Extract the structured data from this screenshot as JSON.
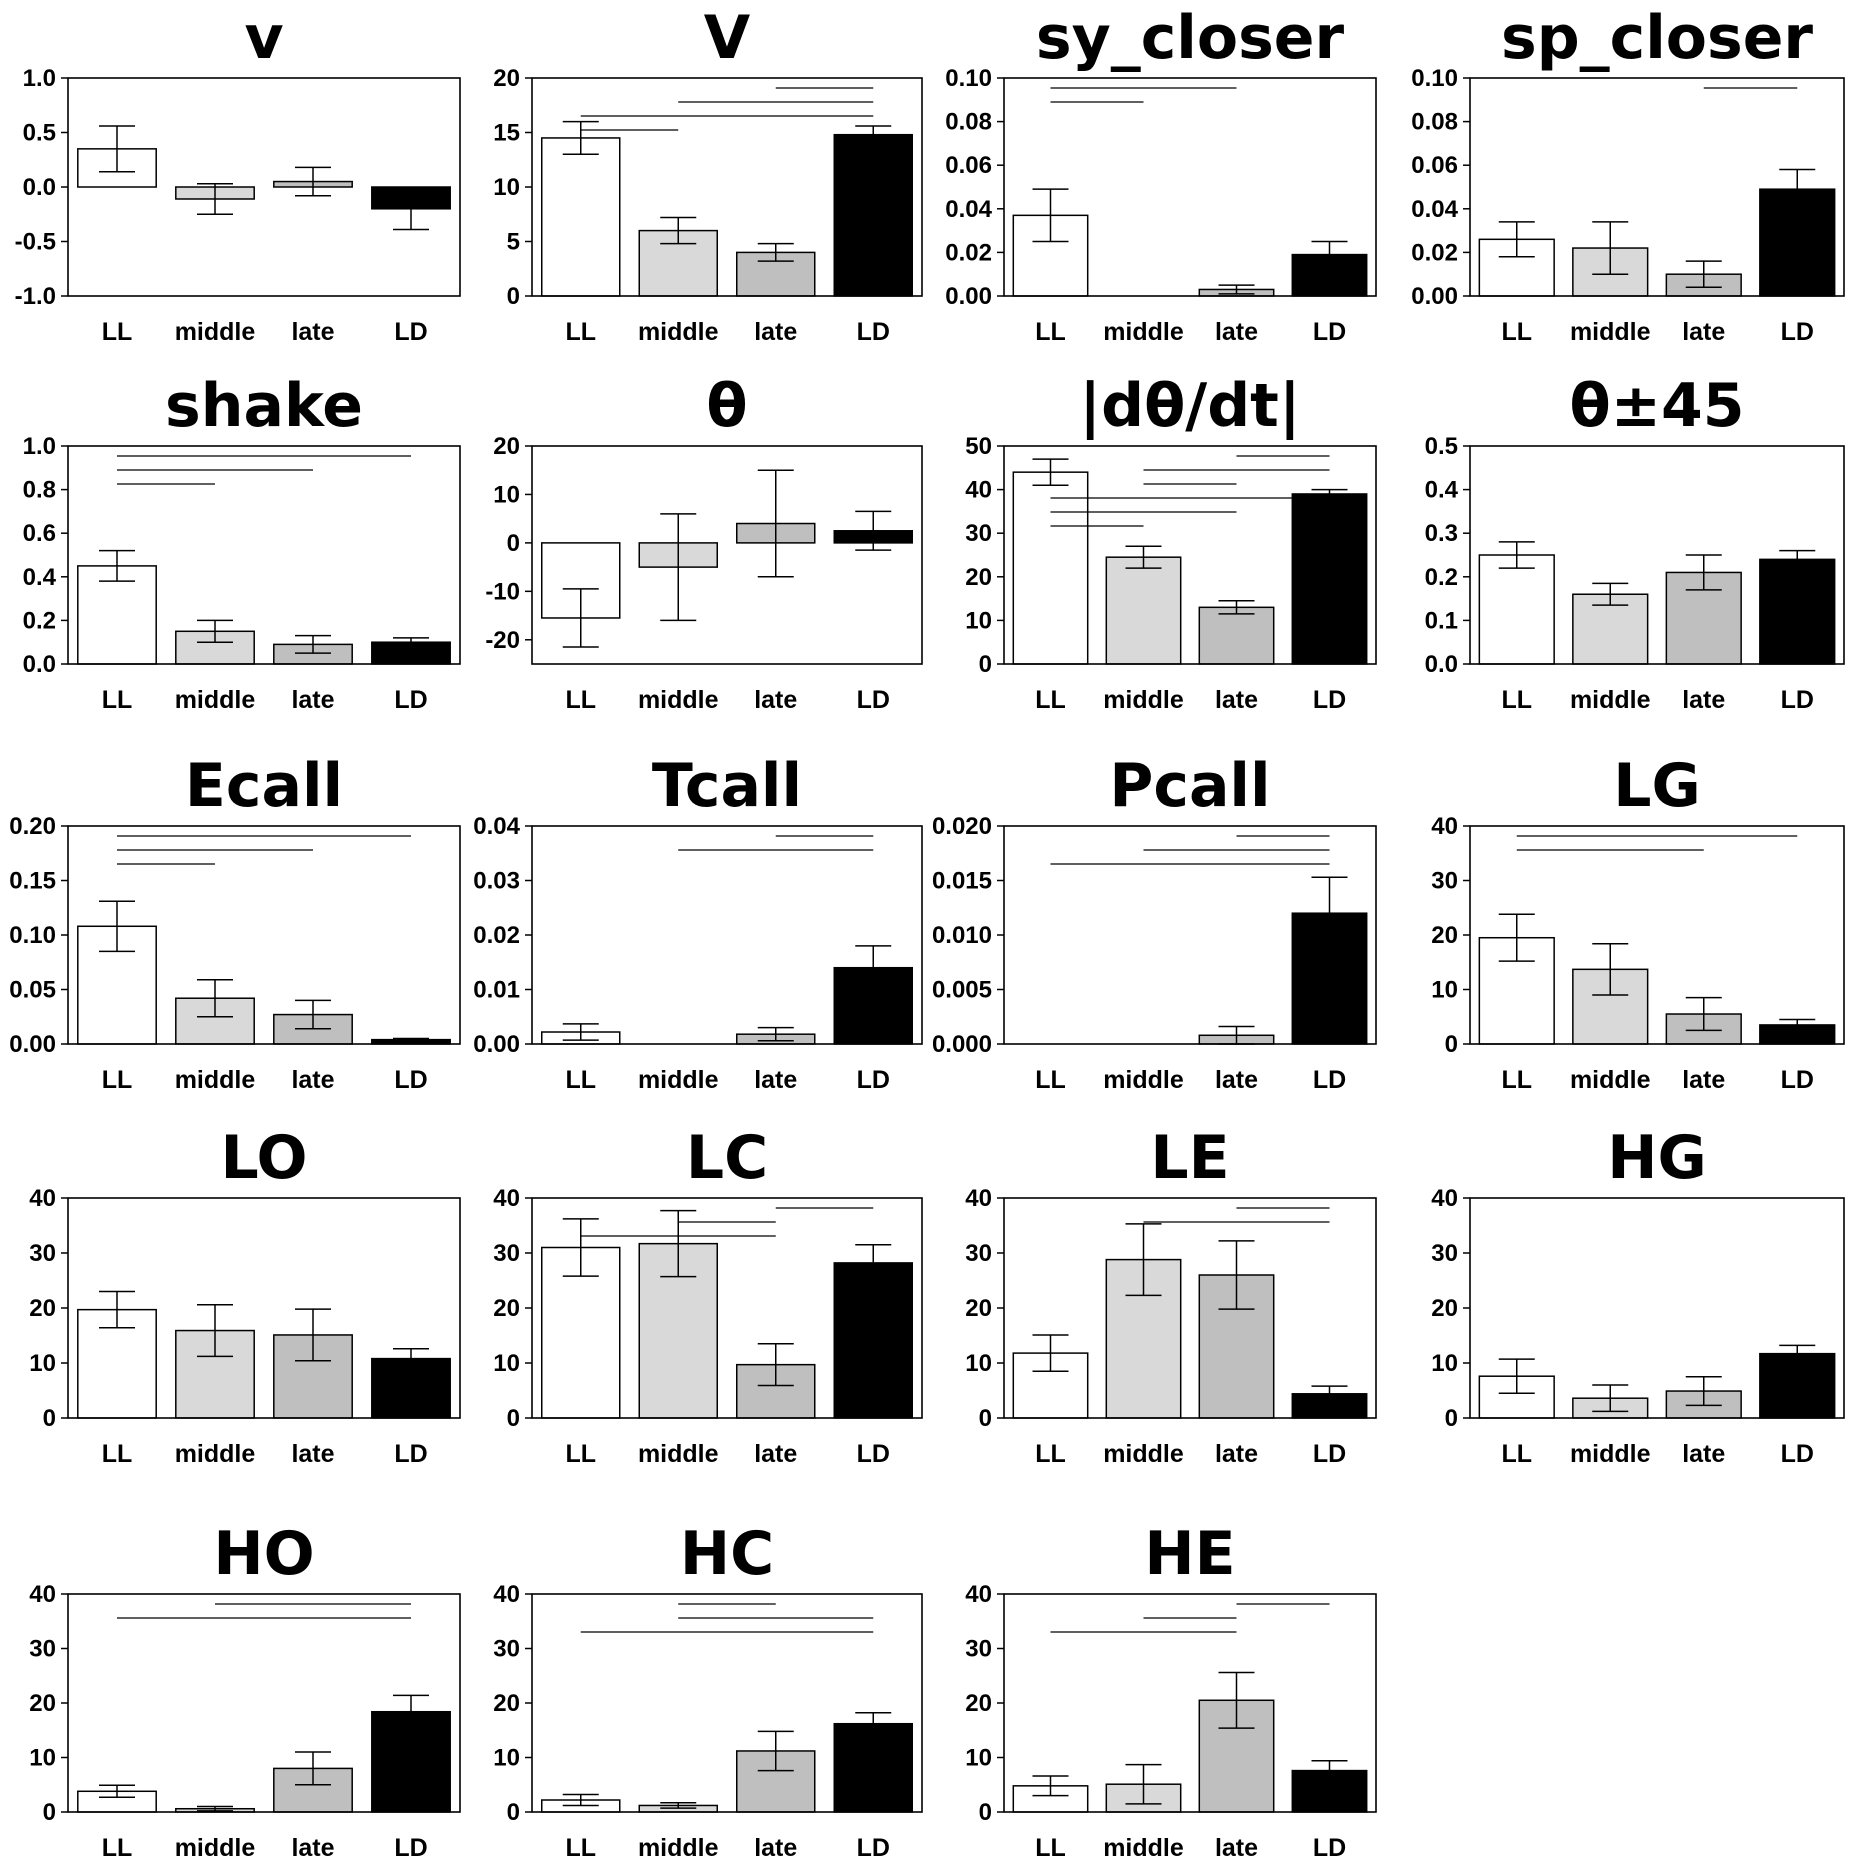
{
  "figure": {
    "categories": [
      "LL",
      "middle",
      "late",
      "LD"
    ],
    "bar_colors": [
      "#ffffff",
      "#d9d9d9",
      "#bfbfbf",
      "#000000"
    ]
  },
  "chart_data": [
    {
      "type": "bar",
      "title": "v",
      "categories": [
        "LL",
        "middle",
        "late",
        "LD"
      ],
      "values": [
        0.35,
        -0.11,
        0.05,
        -0.2
      ],
      "errors": [
        0.21,
        0.14,
        0.13,
        0.19
      ],
      "ylim": [
        -1.0,
        1.0
      ],
      "yticks": [
        "-1.0",
        "-0.5",
        "0.0",
        "0.5",
        "1.0"
      ],
      "significance": []
    },
    {
      "type": "bar",
      "title": "V",
      "categories": [
        "LL",
        "middle",
        "late",
        "LD"
      ],
      "values": [
        14.5,
        6.0,
        4.0,
        14.8
      ],
      "errors": [
        1.5,
        1.2,
        0.8,
        0.8
      ],
      "ylim": [
        0,
        20
      ],
      "yticks": [
        "0",
        "5",
        "10",
        "15",
        "20"
      ],
      "significance": [
        [
          0,
          1
        ],
        [
          0,
          3
        ],
        [
          1,
          3
        ],
        [
          2,
          3
        ]
      ]
    },
    {
      "type": "bar",
      "title": "sy_closer",
      "categories": [
        "LL",
        "middle",
        "late",
        "LD"
      ],
      "values": [
        0.037,
        0.0,
        0.003,
        0.019
      ],
      "errors": [
        0.012,
        0.0,
        0.002,
        0.006
      ],
      "ylim": [
        0,
        0.1
      ],
      "yticks": [
        "0.00",
        "0.02",
        "0.04",
        "0.06",
        "0.08",
        "0.10"
      ],
      "significance": [
        [
          0,
          1
        ],
        [
          0,
          2
        ]
      ]
    },
    {
      "type": "bar",
      "title": "sp_closer",
      "categories": [
        "LL",
        "middle",
        "late",
        "LD"
      ],
      "values": [
        0.026,
        0.022,
        0.01,
        0.049
      ],
      "errors": [
        0.008,
        0.012,
        0.006,
        0.009
      ],
      "ylim": [
        0,
        0.1
      ],
      "yticks": [
        "0.00",
        "0.02",
        "0.04",
        "0.06",
        "0.08",
        "0.10"
      ],
      "significance": [
        [
          2,
          3
        ]
      ]
    },
    {
      "type": "bar",
      "title": "shake",
      "categories": [
        "LL",
        "middle",
        "late",
        "LD"
      ],
      "values": [
        0.45,
        0.15,
        0.09,
        0.1
      ],
      "errors": [
        0.07,
        0.05,
        0.04,
        0.02
      ],
      "ylim": [
        0,
        1.0
      ],
      "yticks": [
        "0.0",
        "0.2",
        "0.4",
        "0.6",
        "0.8",
        "1.0"
      ],
      "significance": [
        [
          0,
          1
        ],
        [
          0,
          2
        ],
        [
          0,
          3
        ]
      ]
    },
    {
      "type": "bar",
      "title": "θ",
      "categories": [
        "LL",
        "middle",
        "late",
        "LD"
      ],
      "values": [
        -15.5,
        -5.0,
        4.0,
        2.5
      ],
      "errors": [
        6.0,
        11.0,
        11.0,
        4.0
      ],
      "ylim": [
        -25,
        20
      ],
      "yticks": [
        "-20",
        "-10",
        "0",
        "10",
        "20"
      ],
      "significance": []
    },
    {
      "type": "bar",
      "title": "|dθ/dt|",
      "categories": [
        "LL",
        "middle",
        "late",
        "LD"
      ],
      "values": [
        44,
        24.5,
        13,
        39
      ],
      "errors": [
        3,
        2.5,
        1.5,
        1
      ],
      "ylim": [
        0,
        50
      ],
      "yticks": [
        "0",
        "10",
        "20",
        "30",
        "40",
        "50"
      ],
      "significance": [
        [
          0,
          1
        ],
        [
          0,
          2
        ],
        [
          0,
          3
        ],
        [
          1,
          2
        ],
        [
          1,
          3
        ],
        [
          2,
          3
        ]
      ]
    },
    {
      "type": "bar",
      "title": "θ±45",
      "categories": [
        "LL",
        "middle",
        "late",
        "LD"
      ],
      "values": [
        0.25,
        0.16,
        0.21,
        0.24
      ],
      "errors": [
        0.03,
        0.025,
        0.04,
        0.02
      ],
      "ylim": [
        0,
        0.5
      ],
      "yticks": [
        "0.0",
        "0.1",
        "0.2",
        "0.3",
        "0.4",
        "0.5"
      ],
      "significance": []
    },
    {
      "type": "bar",
      "title": "Ecall",
      "categories": [
        "LL",
        "middle",
        "late",
        "LD"
      ],
      "values": [
        0.108,
        0.042,
        0.027,
        0.004
      ],
      "errors": [
        0.023,
        0.017,
        0.013,
        0.001
      ],
      "ylim": [
        0,
        0.2
      ],
      "yticks": [
        "0.00",
        "0.05",
        "0.10",
        "0.15",
        "0.20"
      ],
      "significance": [
        [
          0,
          1
        ],
        [
          0,
          2
        ],
        [
          0,
          3
        ]
      ]
    },
    {
      "type": "bar",
      "title": "Tcall",
      "categories": [
        "LL",
        "middle",
        "late",
        "LD"
      ],
      "values": [
        0.0022,
        0.0,
        0.0018,
        0.014
      ],
      "errors": [
        0.0015,
        0.0,
        0.0012,
        0.004
      ],
      "ylim": [
        0,
        0.04
      ],
      "yticks": [
        "0.00",
        "0.01",
        "0.02",
        "0.03",
        "0.04"
      ],
      "significance": [
        [
          1,
          3
        ],
        [
          2,
          3
        ]
      ]
    },
    {
      "type": "bar",
      "title": "Pcall",
      "categories": [
        "LL",
        "middle",
        "late",
        "LD"
      ],
      "values": [
        0.0,
        0.0,
        0.0008,
        0.012
      ],
      "errors": [
        0.0,
        0.0,
        0.0008,
        0.0033
      ],
      "ylim": [
        0,
        0.02
      ],
      "yticks": [
        "0.000",
        "0.005",
        "0.010",
        "0.015",
        "0.020"
      ],
      "significance": [
        [
          0,
          3
        ],
        [
          1,
          3
        ],
        [
          2,
          3
        ]
      ]
    },
    {
      "type": "bar",
      "title": "LG",
      "categories": [
        "LL",
        "middle",
        "late",
        "LD"
      ],
      "values": [
        19.5,
        13.7,
        5.5,
        3.5
      ],
      "errors": [
        4.3,
        4.7,
        3.0,
        1.0
      ],
      "ylim": [
        0,
        40
      ],
      "yticks": [
        "0",
        "10",
        "20",
        "30",
        "40"
      ],
      "significance": [
        [
          0,
          2
        ],
        [
          0,
          3
        ]
      ]
    },
    {
      "type": "bar",
      "title": "LO",
      "categories": [
        "LL",
        "middle",
        "late",
        "LD"
      ],
      "values": [
        19.7,
        15.9,
        15.1,
        10.8
      ],
      "errors": [
        3.3,
        4.7,
        4.7,
        1.8
      ],
      "ylim": [
        0,
        40
      ],
      "yticks": [
        "0",
        "10",
        "20",
        "30",
        "40"
      ],
      "significance": []
    },
    {
      "type": "bar",
      "title": "LC",
      "categories": [
        "LL",
        "middle",
        "late",
        "LD"
      ],
      "values": [
        31,
        31.7,
        9.7,
        28.2
      ],
      "errors": [
        5.2,
        6.0,
        3.8,
        3.3
      ],
      "ylim": [
        0,
        40
      ],
      "yticks": [
        "0",
        "10",
        "20",
        "30",
        "40"
      ],
      "significance": [
        [
          0,
          2
        ],
        [
          1,
          2
        ],
        [
          2,
          3
        ]
      ]
    },
    {
      "type": "bar",
      "title": "LE",
      "categories": [
        "LL",
        "middle",
        "late",
        "LD"
      ],
      "values": [
        11.8,
        28.8,
        26,
        4.4
      ],
      "errors": [
        3.3,
        6.5,
        6.2,
        1.4
      ],
      "ylim": [
        0,
        40
      ],
      "yticks": [
        "0",
        "10",
        "20",
        "30",
        "40"
      ],
      "significance": [
        [
          1,
          3
        ],
        [
          2,
          3
        ]
      ]
    },
    {
      "type": "bar",
      "title": "HG",
      "categories": [
        "LL",
        "middle",
        "late",
        "LD"
      ],
      "values": [
        7.6,
        3.6,
        4.9,
        11.7
      ],
      "errors": [
        3.1,
        2.4,
        2.6,
        1.5
      ],
      "ylim": [
        0,
        40
      ],
      "yticks": [
        "0",
        "10",
        "20",
        "30",
        "40"
      ],
      "significance": []
    },
    {
      "type": "bar",
      "title": "HO",
      "categories": [
        "LL",
        "middle",
        "late",
        "LD"
      ],
      "values": [
        3.8,
        0.6,
        8.0,
        18.4
      ],
      "errors": [
        1.1,
        0.4,
        3.0,
        3.0
      ],
      "ylim": [
        0,
        40
      ],
      "yticks": [
        "0",
        "10",
        "20",
        "30",
        "40"
      ],
      "significance": [
        [
          0,
          3
        ],
        [
          1,
          3
        ]
      ]
    },
    {
      "type": "bar",
      "title": "HC",
      "categories": [
        "LL",
        "middle",
        "late",
        "LD"
      ],
      "values": [
        2.2,
        1.2,
        11.2,
        16.2
      ],
      "errors": [
        1.0,
        0.5,
        3.6,
        2.0
      ],
      "ylim": [
        0,
        40
      ],
      "yticks": [
        "0",
        "10",
        "20",
        "30",
        "40"
      ],
      "significance": [
        [
          0,
          3
        ],
        [
          1,
          3
        ],
        [
          1,
          2
        ]
      ]
    },
    {
      "type": "bar",
      "title": "HE",
      "categories": [
        "LL",
        "middle",
        "late",
        "LD"
      ],
      "values": [
        4.8,
        5.1,
        20.5,
        7.6
      ],
      "errors": [
        1.8,
        3.6,
        5.1,
        1.8
      ],
      "ylim": [
        0,
        40
      ],
      "yticks": [
        "0",
        "10",
        "20",
        "30",
        "40"
      ],
      "significance": [
        [
          0,
          2
        ],
        [
          1,
          2
        ],
        [
          2,
          3
        ]
      ]
    }
  ]
}
